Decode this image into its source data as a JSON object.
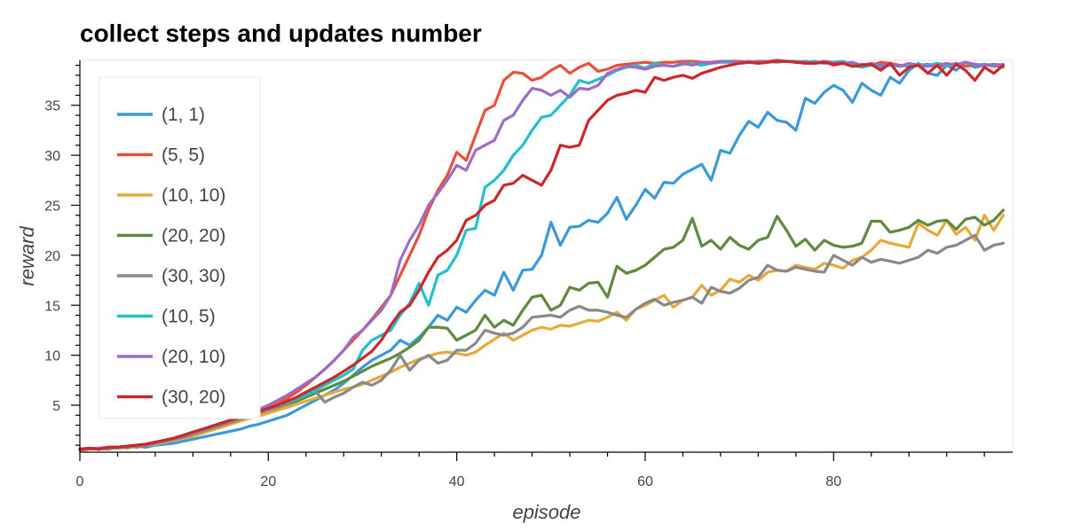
{
  "chart_data": {
    "type": "line",
    "title": "collect steps and updates number",
    "xlabel": "episode",
    "ylabel": "reward",
    "xlim": [
      0,
      99
    ],
    "ylim": [
      0.3,
      39.5
    ],
    "xticks": [
      0,
      20,
      40,
      60,
      80
    ],
    "yticks": [
      5,
      10,
      15,
      20,
      25,
      30,
      35
    ],
    "grid": false,
    "legend_position": "top-left",
    "series": [
      {
        "name": "(1, 1)",
        "color": "#3a9ad9",
        "values": [
          0.6,
          0.7,
          0.6,
          0.8,
          0.7,
          0.8,
          0.9,
          0.8,
          1.0,
          1.1,
          1.2,
          1.4,
          1.6,
          1.8,
          2.0,
          2.2,
          2.4,
          2.6,
          2.9,
          3.1,
          3.4,
          3.7,
          4.0,
          4.5,
          5.0,
          5.5,
          6.0,
          6.5,
          7.2,
          8.0,
          8.8,
          9.5,
          10.0,
          10.5,
          11.5,
          11.0,
          11.8,
          12.8,
          14.0,
          13.5,
          14.8,
          14.3,
          15.5,
          16.5,
          16.0,
          18.3,
          16.5,
          18.5,
          18.6,
          20.0,
          23.3,
          21.0,
          22.8,
          22.9,
          23.5,
          23.3,
          24.2,
          25.8,
          23.6,
          25.0,
          26.6,
          25.7,
          27.3,
          27.2,
          28.1,
          28.6,
          29.1,
          27.5,
          30.5,
          30.2,
          32.0,
          33.4,
          32.8,
          34.3,
          33.5,
          33.3,
          32.5,
          35.7,
          35.2,
          36.3,
          37.0,
          36.5,
          35.3,
          37.2,
          36.5,
          36.0,
          37.8,
          37.2,
          38.5,
          39.2,
          38.2,
          38.0,
          39.0,
          38.5,
          39.3,
          38.8,
          39.0,
          39.0,
          38.8
        ]
      },
      {
        "name": "(5, 5)",
        "color": "#e9503a",
        "values": [
          0.5,
          0.6,
          0.7,
          0.6,
          0.8,
          0.9,
          0.8,
          1.0,
          1.2,
          1.4,
          1.7,
          2.0,
          2.3,
          2.6,
          2.9,
          3.2,
          3.5,
          3.8,
          4.1,
          4.4,
          4.8,
          5.2,
          5.7,
          6.3,
          7.0,
          7.8,
          8.6,
          9.5,
          10.5,
          11.5,
          12.5,
          13.6,
          14.8,
          16.0,
          18.0,
          20.0,
          22.0,
          24.5,
          26.5,
          28.0,
          30.3,
          29.5,
          32.0,
          34.5,
          35.0,
          37.5,
          38.3,
          38.2,
          37.5,
          37.8,
          38.5,
          39.0,
          38.2,
          38.8,
          39.2,
          38.4,
          38.6,
          39.0,
          39.1,
          39.2,
          39.3,
          39.2,
          39.3,
          39.3,
          39.4,
          39.4,
          39.3,
          39.3,
          39.4,
          39.4,
          39.4,
          39.3,
          39.4,
          39.4,
          39.5,
          39.4,
          39.4,
          39.3,
          39.2,
          39.4,
          39.0,
          39.2,
          38.9,
          39.1,
          39.0,
          39.3,
          39.2,
          39.0,
          38.9,
          39.0,
          39.1,
          38.9,
          39.0,
          39.2,
          38.9,
          39.0,
          39.1,
          38.9,
          39.0
        ]
      },
      {
        "name": "(10, 10)",
        "color": "#e8a83a",
        "values": [
          0.6,
          0.7,
          0.6,
          0.7,
          0.8,
          0.7,
          0.9,
          1.0,
          1.1,
          1.3,
          1.5,
          1.7,
          1.9,
          2.2,
          2.5,
          2.8,
          3.1,
          3.4,
          3.7,
          3.9,
          4.2,
          4.5,
          4.8,
          5.1,
          5.4,
          5.7,
          6.0,
          6.3,
          6.6,
          6.8,
          7.1,
          7.5,
          7.9,
          8.3,
          8.8,
          9.2,
          9.6,
          9.9,
          10.2,
          10.3,
          10.2,
          10.0,
          10.3,
          11.0,
          11.6,
          12.2,
          11.5,
          12.0,
          12.5,
          12.8,
          12.6,
          13.0,
          12.9,
          13.2,
          13.5,
          13.4,
          13.8,
          14.3,
          13.5,
          14.6,
          15.0,
          15.5,
          16.0,
          14.8,
          15.5,
          15.8,
          17.0,
          16.0,
          16.5,
          17.6,
          17.3,
          18.0,
          17.5,
          18.3,
          18.5,
          18.4,
          19.0,
          18.8,
          18.6,
          19.2,
          19.0,
          18.7,
          19.5,
          19.8,
          20.5,
          21.5,
          21.2,
          21.0,
          20.8,
          23.2,
          22.5,
          22.0,
          23.5,
          22.1,
          22.8,
          21.5,
          24.0,
          22.5,
          24.0
        ]
      },
      {
        "name": "(20, 20)",
        "color": "#5e8a3e",
        "values": [
          0.6,
          0.7,
          0.6,
          0.7,
          0.8,
          0.8,
          0.9,
          1.0,
          1.2,
          1.4,
          1.6,
          1.8,
          2.1,
          2.4,
          2.7,
          3.0,
          3.3,
          3.6,
          3.9,
          4.2,
          4.5,
          4.8,
          5.1,
          5.4,
          5.8,
          6.2,
          6.6,
          7.0,
          7.4,
          7.9,
          8.4,
          8.9,
          9.3,
          9.7,
          10.2,
          10.8,
          11.5,
          12.8,
          12.8,
          12.7,
          11.5,
          12.0,
          12.5,
          14.0,
          12.8,
          13.5,
          13.0,
          14.5,
          15.8,
          16.0,
          14.5,
          15.0,
          16.8,
          16.5,
          17.2,
          17.3,
          15.8,
          18.9,
          18.2,
          18.5,
          19.0,
          19.8,
          20.6,
          20.8,
          21.5,
          23.7,
          20.9,
          21.5,
          20.6,
          21.8,
          21.0,
          20.6,
          21.5,
          21.8,
          23.9,
          22.5,
          20.9,
          21.6,
          20.5,
          21.5,
          21.0,
          20.8,
          20.9,
          21.2,
          23.4,
          23.4,
          22.3,
          22.5,
          22.8,
          23.5,
          23.0,
          23.4,
          23.5,
          22.6,
          23.6,
          23.8,
          23.0,
          23.5,
          24.5
        ]
      },
      {
        "name": "(30, 30)",
        "color": "#898989",
        "values": [
          0.6,
          0.7,
          0.6,
          0.7,
          0.8,
          0.8,
          0.9,
          1.0,
          1.2,
          1.4,
          1.6,
          1.8,
          2.1,
          2.4,
          2.7,
          3.0,
          3.3,
          3.6,
          3.9,
          4.2,
          4.5,
          4.8,
          5.2,
          5.6,
          6.0,
          6.4,
          5.3,
          5.8,
          6.2,
          6.8,
          7.3,
          7.0,
          7.5,
          8.5,
          10.0,
          8.5,
          9.5,
          10.0,
          9.2,
          9.5,
          10.5,
          10.5,
          11.2,
          12.5,
          12.2,
          12.0,
          12.2,
          12.8,
          13.8,
          13.9,
          14.0,
          13.8,
          14.5,
          14.9,
          14.5,
          14.5,
          14.3,
          14.0,
          13.8,
          14.6,
          15.2,
          15.6,
          15.0,
          15.3,
          15.5,
          15.8,
          15.2,
          16.8,
          16.4,
          16.2,
          16.7,
          17.5,
          17.8,
          19.0,
          18.5,
          18.4,
          18.8,
          18.6,
          18.4,
          18.3,
          20.0,
          19.5,
          19.0,
          19.8,
          19.3,
          19.6,
          19.4,
          19.2,
          19.5,
          19.8,
          20.5,
          20.2,
          20.8,
          21.0,
          21.5,
          22.0,
          20.5,
          21.0,
          21.2
        ]
      },
      {
        "name": "(10, 5)",
        "color": "#22bfcf",
        "values": [
          0.6,
          0.7,
          0.6,
          0.8,
          0.8,
          0.9,
          1.0,
          1.1,
          1.3,
          1.5,
          1.7,
          2.0,
          2.3,
          2.6,
          2.9,
          3.2,
          3.5,
          3.8,
          4.1,
          4.4,
          4.7,
          5.0,
          5.3,
          5.6,
          6.0,
          6.5,
          7.0,
          7.5,
          8.0,
          8.6,
          10.5,
          11.5,
          12.0,
          12.5,
          14.0,
          15.2,
          17.2,
          15.0,
          18.0,
          18.5,
          20.0,
          22.5,
          22.7,
          26.8,
          27.5,
          28.5,
          30.0,
          31.0,
          32.5,
          33.8,
          34.0,
          35.0,
          36.0,
          37.5,
          37.2,
          37.6,
          38.0,
          38.5,
          38.8,
          39.0,
          38.7,
          39.2,
          39.0,
          38.9,
          39.1,
          39.2,
          39.0,
          39.2,
          39.3,
          39.3,
          39.2,
          39.3,
          39.3,
          39.4,
          39.3,
          39.4,
          39.4,
          39.3,
          39.4,
          39.2,
          39.3,
          39.4,
          39.0,
          38.8,
          39.0,
          38.8,
          39.0,
          38.9,
          39.0,
          39.1,
          39.0,
          39.2,
          39.0,
          39.1,
          39.3,
          39.0,
          39.1,
          39.0,
          39.1
        ]
      },
      {
        "name": "(20, 10)",
        "color": "#9b6cc8",
        "values": [
          0.6,
          0.7,
          0.7,
          0.8,
          0.8,
          0.9,
          1.0,
          1.1,
          1.3,
          1.5,
          1.7,
          2.0,
          2.3,
          2.6,
          2.9,
          3.2,
          3.5,
          3.8,
          4.2,
          4.6,
          5.0,
          5.5,
          6.0,
          6.6,
          7.2,
          7.8,
          8.6,
          9.5,
          10.5,
          11.8,
          12.5,
          13.5,
          14.5,
          16.0,
          19.5,
          21.5,
          23.0,
          25.0,
          26.2,
          27.5,
          29.0,
          28.5,
          30.5,
          31.0,
          31.5,
          33.5,
          34.0,
          35.5,
          36.7,
          36.5,
          36.0,
          36.5,
          35.8,
          36.7,
          36.6,
          37.0,
          38.2,
          38.6,
          38.9,
          38.8,
          38.6,
          38.9,
          39.0,
          38.9,
          39.2,
          39.0,
          39.3,
          39.2,
          39.4,
          39.4,
          39.3,
          39.4,
          39.3,
          39.4,
          39.4,
          39.4,
          39.3,
          39.4,
          39.2,
          39.4,
          39.3,
          39.2,
          39.3,
          39.0,
          39.2,
          39.0,
          39.1,
          38.9,
          39.2,
          39.0,
          38.9,
          39.0,
          39.2,
          39.0,
          39.3,
          39.1,
          39.0,
          39.1,
          39.0
        ]
      },
      {
        "name": "(30, 20)",
        "color": "#cc2828",
        "values": [
          0.6,
          0.7,
          0.6,
          0.8,
          0.8,
          0.9,
          1.0,
          1.1,
          1.3,
          1.5,
          1.7,
          2.0,
          2.3,
          2.6,
          2.9,
          3.2,
          3.5,
          3.8,
          4.1,
          4.4,
          4.7,
          5.0,
          5.4,
          5.8,
          6.3,
          6.8,
          7.3,
          7.8,
          8.4,
          9.0,
          9.7,
          10.4,
          11.5,
          13.0,
          14.3,
          15.0,
          16.5,
          18.3,
          19.8,
          20.5,
          21.5,
          23.5,
          24.0,
          25.0,
          25.5,
          27.0,
          27.2,
          28.0,
          27.5,
          27.0,
          28.5,
          31.0,
          30.8,
          31.0,
          33.5,
          34.5,
          35.5,
          36.0,
          36.2,
          36.5,
          36.3,
          37.8,
          37.5,
          37.8,
          38.0,
          37.7,
          38.2,
          38.5,
          38.8,
          39.0,
          39.2,
          39.3,
          39.2,
          39.3,
          39.4,
          39.4,
          39.3,
          39.2,
          39.2,
          39.3,
          39.1,
          39.2,
          38.9,
          39.0,
          39.1,
          38.5,
          39.2,
          38.0,
          38.8,
          39.0,
          38.2,
          39.0,
          38.0,
          39.1,
          38.5,
          37.5,
          38.8,
          38.2,
          39.0
        ]
      }
    ]
  }
}
